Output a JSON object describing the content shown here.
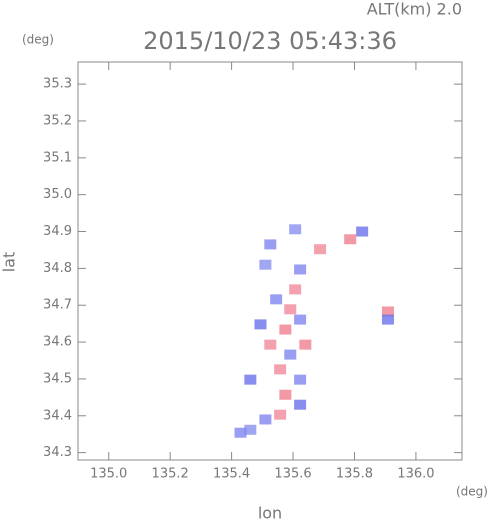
{
  "chart_data": {
    "type": "scatter",
    "title": "2015/10/23 05:43:36",
    "altitude_label": "ALT(km) 2.0",
    "y_unit": "(deg)",
    "x_unit": "(deg)",
    "x_label": "lon",
    "y_label": "lat",
    "xlim": [
      134.9,
      136.15
    ],
    "ylim": [
      34.28,
      35.36
    ],
    "xticks": [
      {
        "value": 135.0,
        "label": "135.0"
      },
      135.2,
      135.4,
      135.6,
      135.8,
      {
        "value": 136.0,
        "label": "136.0"
      }
    ],
    "yticks": [
      34.3,
      34.4,
      34.5,
      34.6,
      34.7,
      34.8,
      34.9,
      {
        "value": 35.0,
        "label": "35.0"
      },
      35.1,
      35.2,
      35.3
    ],
    "x": [
      135.526,
      135.607,
      135.688,
      135.623,
      135.786,
      135.825,
      135.51,
      135.545,
      135.591,
      135.494,
      135.575,
      135.623,
      135.526,
      135.591,
      135.64,
      135.558,
      135.623,
      135.461,
      135.575,
      135.623,
      135.558,
      135.51,
      135.461,
      135.429,
      135.909,
      135.909,
      135.607
    ],
    "y": [
      34.865,
      34.906,
      34.852,
      34.797,
      34.879,
      34.9,
      34.81,
      34.716,
      34.689,
      34.648,
      34.634,
      34.661,
      34.593,
      34.566,
      34.593,
      34.526,
      34.498,
      34.498,
      34.457,
      34.43,
      34.403,
      34.39,
      34.362,
      34.354,
      34.683,
      34.661,
      34.743
    ],
    "colors": [
      "#7f86f0",
      "#8a90f0",
      "#f08a9a",
      "#7f86f0",
      "#f07f8f",
      "#6a72e8",
      "#8a90f0",
      "#7f86f0",
      "#f08a9a",
      "#6a72e8",
      "#f07f8f",
      "#7f86f0",
      "#f08a9a",
      "#7f86f0",
      "#f07f8f",
      "#f08a9a",
      "#7f86f0",
      "#6a72e8",
      "#f07f8f",
      "#6a72e8",
      "#f08a9a",
      "#7f86f0",
      "#8a90f0",
      "#7f86f0",
      "#f07f8f",
      "#6a72e8",
      "#f08a9a"
    ]
  }
}
